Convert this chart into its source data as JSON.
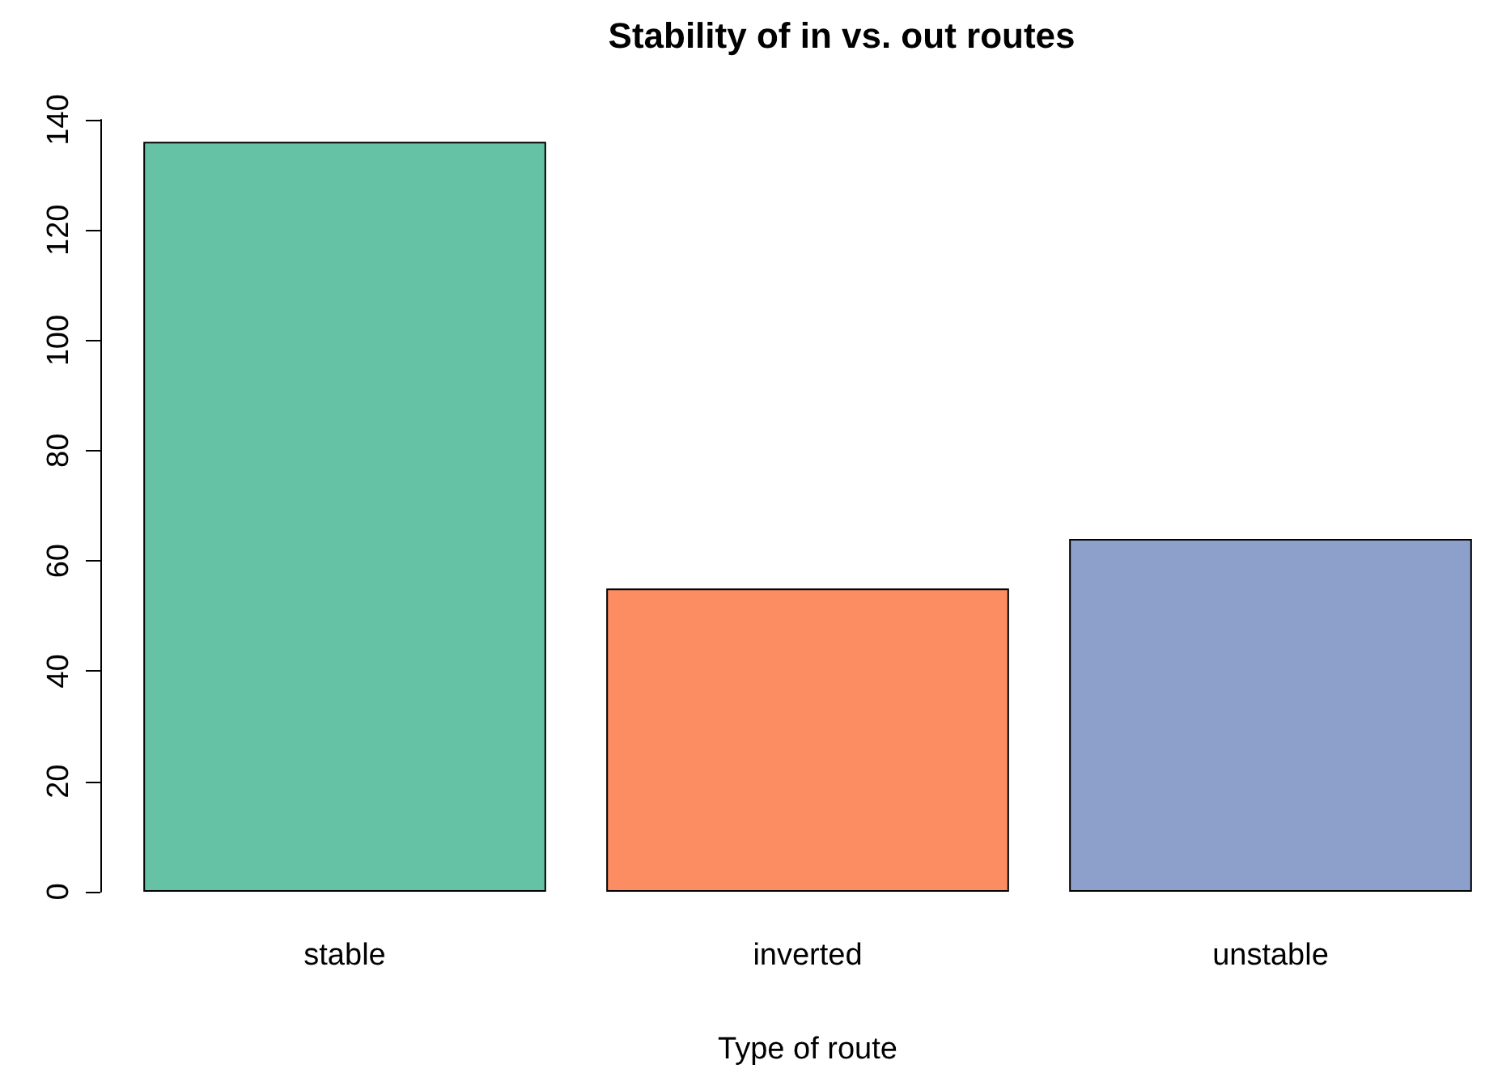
{
  "chart_data": {
    "type": "bar",
    "title": "Stability of in vs. out routes",
    "xlabel": "Type of route",
    "categories": [
      "stable",
      "inverted",
      "unstable"
    ],
    "values": [
      136,
      55,
      64
    ],
    "colors": [
      "#66c2a5",
      "#fc8d62",
      "#8da0cb"
    ],
    "ylim": [
      0,
      140
    ],
    "yticks": [
      0,
      20,
      40,
      60,
      80,
      100,
      120,
      140
    ]
  }
}
